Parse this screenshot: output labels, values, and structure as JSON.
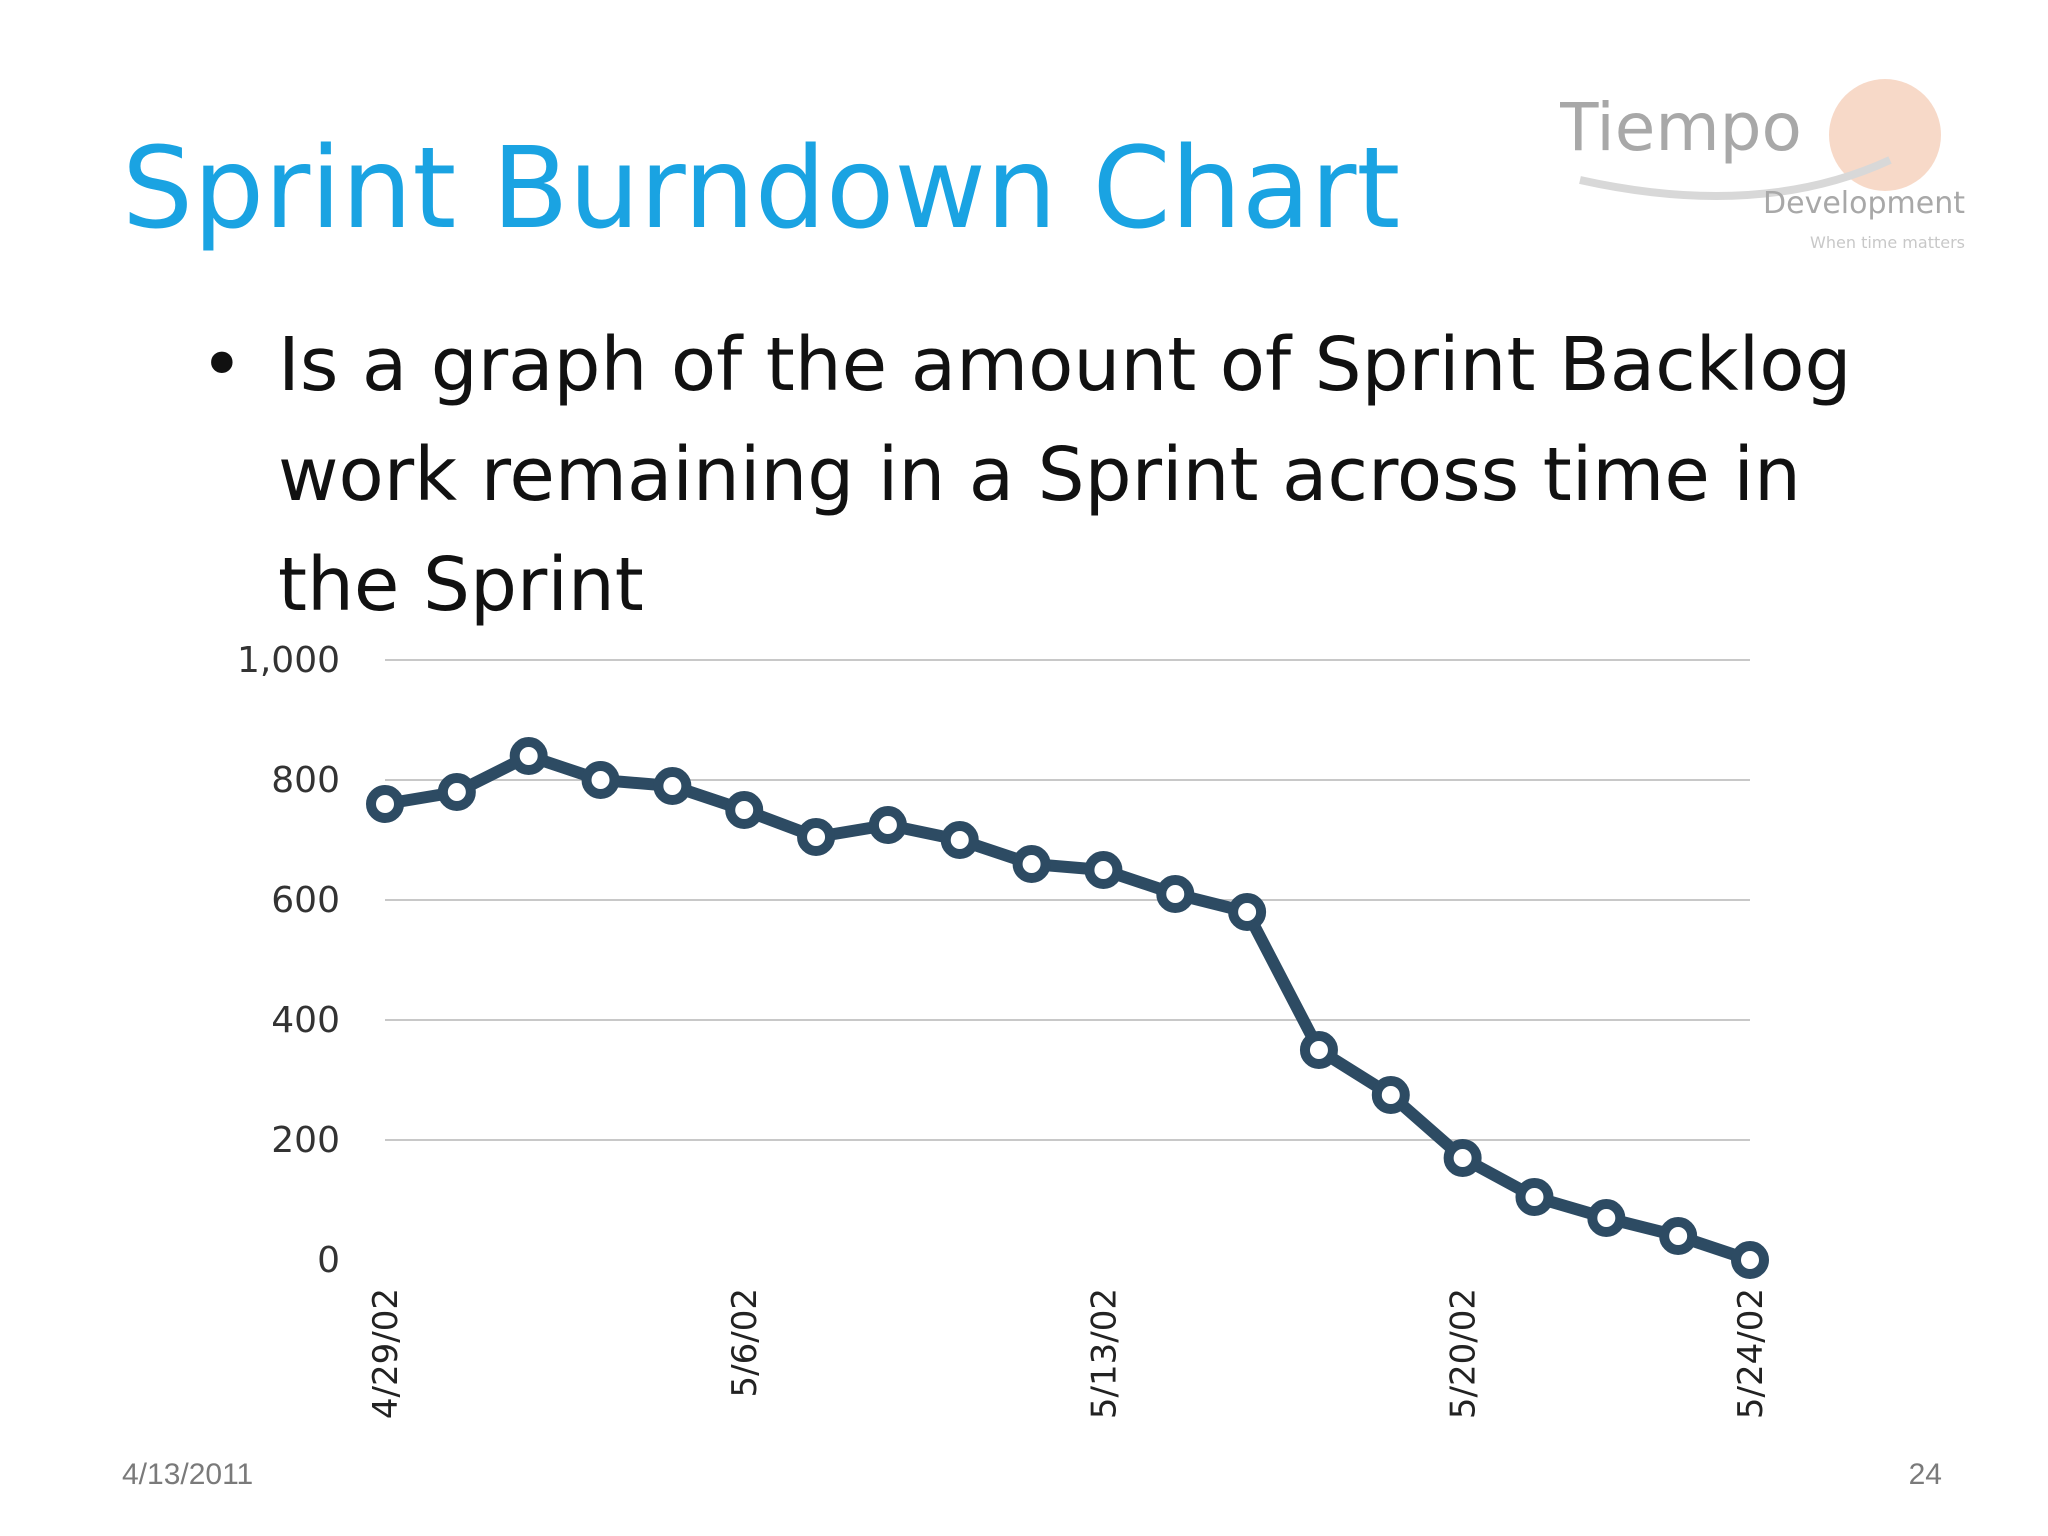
{
  "slide": {
    "title": "Sprint Burndown Chart",
    "bullet": "Is a graph of the amount of Sprint Backlog work remaining in a Sprint across time in the Sprint",
    "footer_date": "4/13/2011",
    "page_number": "24"
  },
  "logo": {
    "brand": "Tiempo",
    "sub": "Development",
    "tagline": "When time matters",
    "color_text": "#a8a8a8",
    "color_circle": "#f0b99a"
  },
  "colors": {
    "title": "#1aa3e2",
    "line": "#2d4b63",
    "grid": "#c8c8c8"
  },
  "chart_data": {
    "type": "line",
    "title": "",
    "xlabel": "",
    "ylabel": "",
    "ylim": [
      0,
      1000
    ],
    "y_ticks": [
      0,
      200,
      400,
      600,
      800,
      1000
    ],
    "y_tick_labels": [
      "0",
      "200",
      "400",
      "600",
      "800",
      "1,000"
    ],
    "x_tick_labels": [
      {
        "index": 0,
        "label": "4/29/02"
      },
      {
        "index": 5,
        "label": "5/6/02"
      },
      {
        "index": 10,
        "label": "5/13/02"
      },
      {
        "index": 15,
        "label": "5/20/02"
      },
      {
        "index": 19,
        "label": "5/24/02"
      }
    ],
    "grid": true,
    "legend": "none",
    "series": [
      {
        "values": [
          760,
          780,
          840,
          800,
          790,
          750,
          705,
          725,
          700,
          660,
          650,
          610,
          580,
          350,
          275,
          170,
          105,
          70,
          40,
          0
        ]
      }
    ]
  }
}
